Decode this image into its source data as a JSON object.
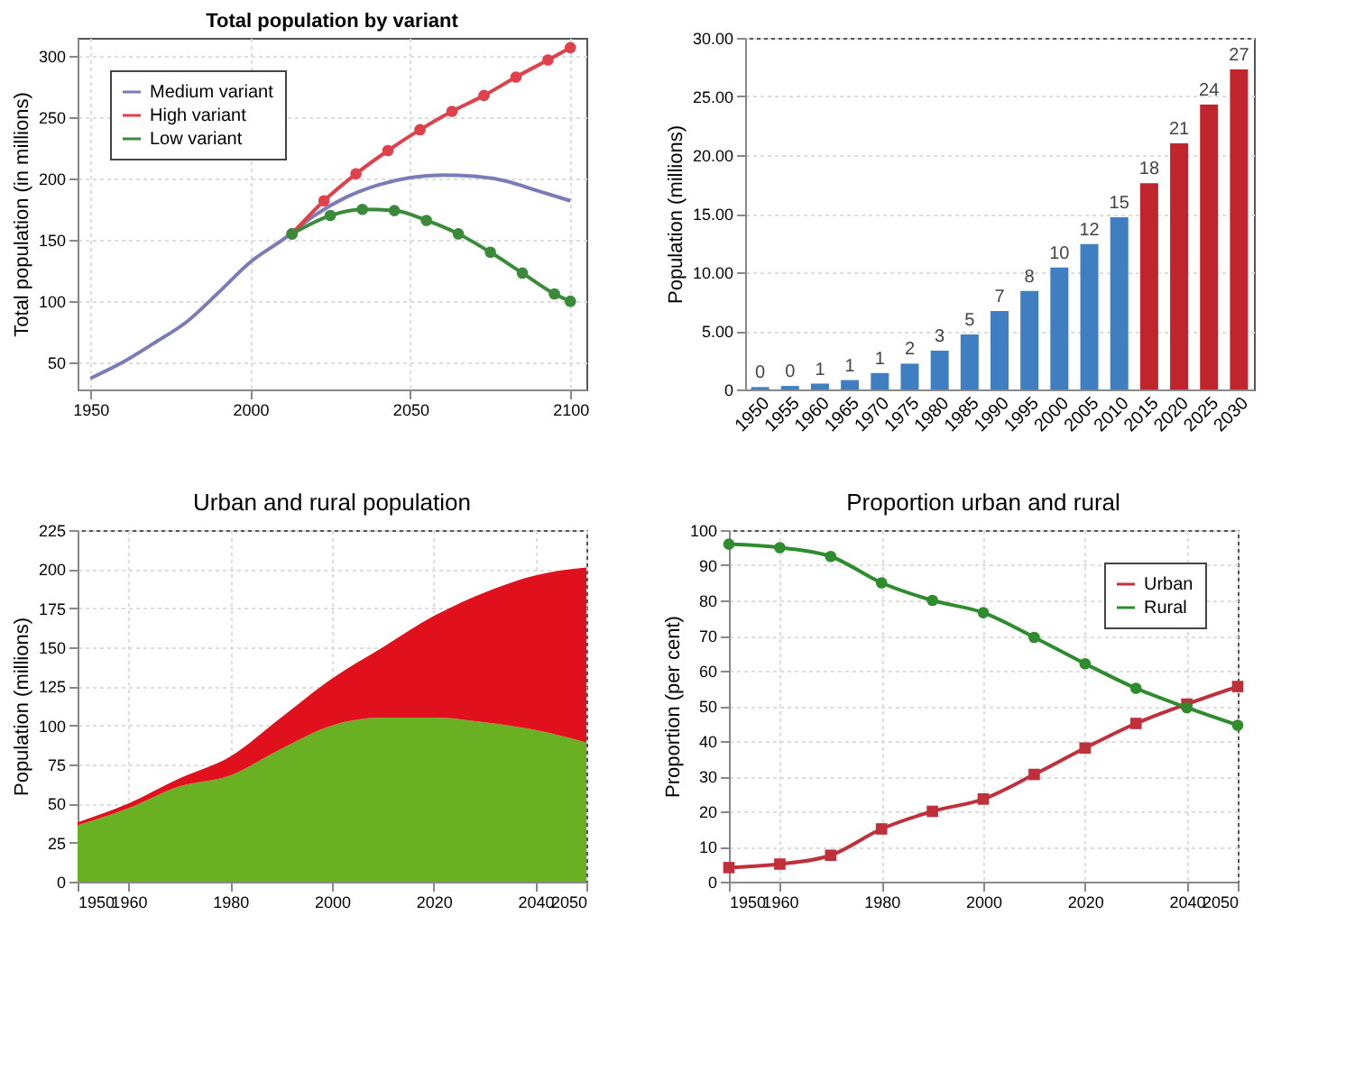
{
  "chart_data": [
    {
      "type": "line",
      "title": "Total population by variant",
      "ylabel": "Total population (in millions)",
      "xlim": [
        1946,
        2105
      ],
      "xticks": [
        1950,
        2000,
        2050,
        2100
      ],
      "ylim": [
        28,
        315
      ],
      "yticks": [
        50,
        100,
        150,
        200,
        250,
        300
      ],
      "grid": true,
      "legend": "top left",
      "series": [
        {
          "name": "Medium variant",
          "color": "#7b7bb8",
          "marker": "none",
          "x": [
            1950,
            1960,
            1970,
            1980,
            1990,
            2000,
            2010,
            2020,
            2030,
            2040,
            2050,
            2060,
            2070,
            2080,
            2090,
            2100
          ],
          "values": [
            37,
            50,
            66,
            83,
            107,
            132,
            150,
            170,
            185,
            195,
            201,
            203,
            202,
            198,
            190,
            182
          ]
        },
        {
          "name": "High variant",
          "color": "#e0404a",
          "marker": "circle",
          "x": [
            2013,
            2023,
            2033,
            2043,
            2053,
            2063,
            2073,
            2083,
            2093,
            2100
          ],
          "values": [
            155,
            182,
            204,
            223,
            240,
            255,
            268,
            283,
            297,
            307
          ]
        },
        {
          "name": "Low variant",
          "color": "#3a8a3a",
          "marker": "circle",
          "x": [
            2013,
            2025,
            2035,
            2045,
            2055,
            2065,
            2075,
            2085,
            2095,
            2100
          ],
          "values": [
            155,
            170,
            175,
            174,
            166,
            155,
            140,
            123,
            106,
            100
          ]
        }
      ]
    },
    {
      "type": "bar",
      "ylabel": "Population (millions)",
      "grid": "y",
      "categories": [
        "1950",
        "1955",
        "1960",
        "1965",
        "1970",
        "1975",
        "1980",
        "1985",
        "1990",
        "1995",
        "2000",
        "2005",
        "2010",
        "2015",
        "2020",
        "2025",
        "2030"
      ],
      "values": [
        0.2,
        0.3,
        0.5,
        0.8,
        1.4,
        2.2,
        3.3,
        4.7,
        6.7,
        8.4,
        10.4,
        12.4,
        14.7,
        17.6,
        21.0,
        24.3,
        27.3
      ],
      "value_labels": [
        "0",
        "0",
        "1",
        "1",
        "1",
        "2",
        "3",
        "5",
        "7",
        "8",
        "10",
        "12",
        "15",
        "18",
        "21",
        "24",
        "27"
      ],
      "colors": [
        "#3f7fc1",
        "#3f7fc1",
        "#3f7fc1",
        "#3f7fc1",
        "#3f7fc1",
        "#3f7fc1",
        "#3f7fc1",
        "#3f7fc1",
        "#3f7fc1",
        "#3f7fc1",
        "#3f7fc1",
        "#3f7fc1",
        "#3f7fc1",
        "#c0242c",
        "#c0242c",
        "#c0242c",
        "#c0242c"
      ],
      "ylim": [
        0,
        30
      ],
      "yticks": [
        {
          "value": 0,
          "label": "0"
        },
        {
          "value": 5,
          "label": "5.00"
        },
        {
          "value": 10,
          "label": "10.00"
        },
        {
          "value": 15,
          "label": "15.00"
        },
        {
          "value": 20,
          "label": "20.00"
        },
        {
          "value": 25,
          "label": "25.00"
        },
        {
          "value": 30,
          "label": "30.00"
        }
      ]
    },
    {
      "type": "area",
      "title": "Urban and rural population",
      "ylabel": "Population (millions)",
      "stacked": true,
      "grid": true,
      "x": [
        1950,
        1960,
        1970,
        1980,
        1990,
        2000,
        2010,
        2020,
        2030,
        2040,
        2050
      ],
      "xlim": [
        1950,
        2050
      ],
      "xticks": [
        1950,
        1960,
        1980,
        2000,
        2020,
        2040,
        2050
      ],
      "ylim": [
        0,
        225
      ],
      "yticks": [
        0,
        25,
        50,
        75,
        100,
        125,
        150,
        175,
        200,
        225
      ],
      "series": [
        {
          "color": "#6ab023",
          "values": [
            36,
            47,
            61,
            68,
            85,
            100,
            105,
            105,
            102,
            97,
            89
          ]
        },
        {
          "color": "#e0101c",
          "values": [
            2,
            3,
            5,
            12,
            20,
            30,
            45,
            65,
            83,
            99,
            112
          ]
        }
      ]
    },
    {
      "type": "line",
      "title": "Proportion urban and rural",
      "ylabel": "Proportion (per cent)",
      "grid": true,
      "legend": "top right",
      "x": [
        1950,
        1960,
        1970,
        1980,
        1990,
        2000,
        2010,
        2020,
        2030,
        2040,
        2050
      ],
      "xlim": [
        1950,
        2050
      ],
      "xticks": [
        1950,
        1960,
        1980,
        2000,
        2020,
        2040,
        2050
      ],
      "ylim": [
        0,
        100
      ],
      "yticks": [
        0,
        10,
        20,
        30,
        40,
        50,
        60,
        70,
        80,
        90,
        100
      ],
      "series": [
        {
          "name": "Urban",
          "color": "#c0303a",
          "marker": "square",
          "values": [
            4,
            5,
            7.5,
            15,
            20,
            23.5,
            30.5,
            38,
            45,
            50.5,
            55.5
          ]
        },
        {
          "name": "Rural",
          "color": "#2e8b2e",
          "marker": "circle",
          "values": [
            96,
            95,
            92.5,
            85,
            80,
            76.5,
            69.5,
            62,
            55,
            49.5,
            44.5
          ]
        }
      ]
    }
  ]
}
